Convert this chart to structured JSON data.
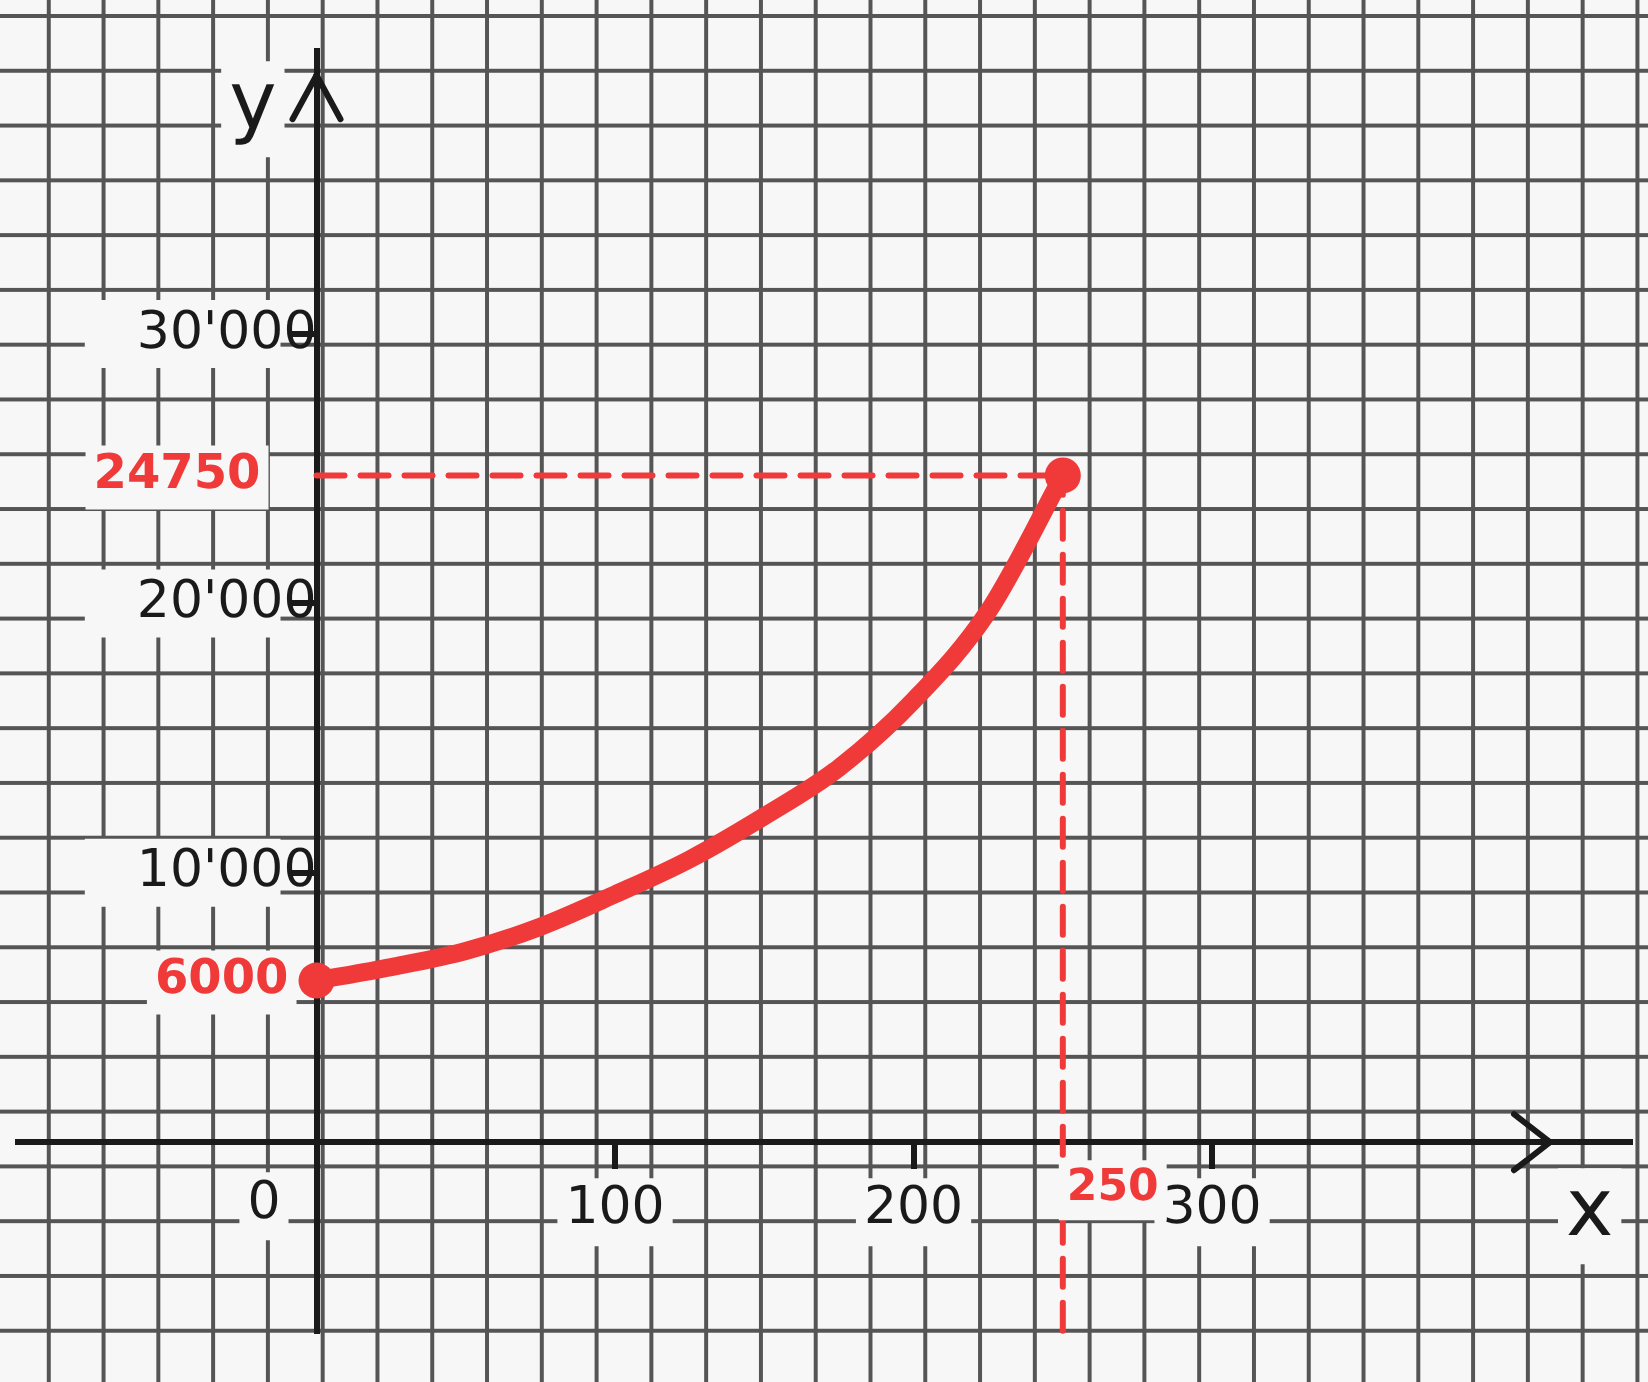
{
  "chart_data": {
    "type": "line",
    "xlabel": "x",
    "ylabel": "y",
    "xlim": [
      -100,
      440
    ],
    "ylim": [
      -7000,
      40500
    ],
    "xticks": [
      {
        "value": 0,
        "label": null
      },
      100,
      200,
      300
    ],
    "yticks": [
      {
        "value": 10000,
        "label": "10'000"
      },
      {
        "value": 20000,
        "label": "20'000"
      },
      {
        "value": 30000,
        "label": "30'000"
      }
    ],
    "grid": false,
    "legend": false,
    "series": [
      {
        "color": "#f03a3a",
        "marker": "none",
        "line_style": "solid",
        "x": [
          0,
          25,
          50,
          75,
          100,
          125,
          150,
          175,
          200,
          225,
          250
        ],
        "values": [
          6000,
          6500,
          7100,
          8000,
          9200,
          10500,
          12100,
          13900,
          16400,
          19700,
          24750
        ]
      },
      {
        "type": "scatter",
        "color": "#f03a3a",
        "marker": "circle",
        "x": [
          0,
          250
        ],
        "values": [
          6000,
          24750
        ]
      }
    ],
    "ref_lines": [
      {
        "axis": "x",
        "value": 250,
        "label": "250",
        "color": "#f03a3a",
        "line_style": "dashed"
      },
      {
        "axis": "y",
        "value": 24750,
        "label": "24750",
        "color": "#f03a3a",
        "line_style": "dashed"
      }
    ],
    "annotations": [
      {
        "text": "6000",
        "x": 0,
        "y": 6000
      },
      "0"
    ]
  }
}
